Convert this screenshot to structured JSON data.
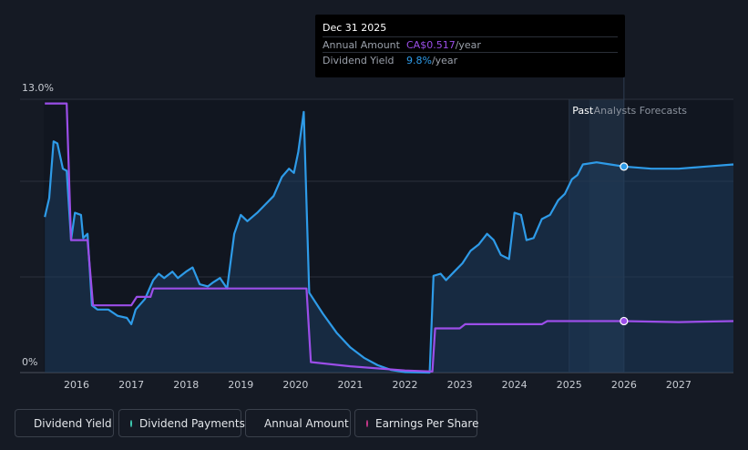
{
  "colors": {
    "background": "#151a24",
    "dividend_yield": "#2e9be8",
    "annual_amount": "#9b4ee8",
    "dividend_payments": "#3fcfb4",
    "earnings_per_share": "#c8388b"
  },
  "tooltip": {
    "date": "Dec 31 2025",
    "annual_amount_label": "Annual Amount",
    "annual_amount_value": "CA$0.517",
    "annual_amount_unit": "/year",
    "dividend_yield_label": "Dividend Yield",
    "dividend_yield_value": "9.8%",
    "dividend_yield_unit": "/year"
  },
  "legend": {
    "dividend_yield": "Dividend Yield",
    "dividend_payments": "Dividend Payments",
    "annual_amount": "Annual Amount",
    "earnings_per_share": "Earnings Per Share"
  },
  "chart_data": {
    "type": "line",
    "y_tick_labels": [
      "13.0%",
      "0%"
    ],
    "ylim": [
      0,
      13.0
    ],
    "x_tick_labels": [
      "2016",
      "2017",
      "2018",
      "2019",
      "2020",
      "2021",
      "2022",
      "2023",
      "2024",
      "2025",
      "2026",
      "2027"
    ],
    "xlim": [
      2015.4,
      2028.0
    ],
    "region_labels": {
      "past": "Past",
      "forecast": "Analysts Forecasts"
    },
    "past_boundary": 2025.0,
    "forecast_start": 2026.0,
    "grid": true,
    "series": [
      {
        "name": "Dividend Yield",
        "area": true,
        "points": [
          [
            2015.42,
            7.4
          ],
          [
            2015.5,
            8.3
          ],
          [
            2015.58,
            11.0
          ],
          [
            2015.65,
            10.9
          ],
          [
            2015.75,
            9.7
          ],
          [
            2015.82,
            9.6
          ],
          [
            2015.9,
            6.3
          ],
          [
            2015.97,
            7.6
          ],
          [
            2016.08,
            7.5
          ],
          [
            2016.12,
            6.4
          ],
          [
            2016.2,
            6.6
          ],
          [
            2016.28,
            3.2
          ],
          [
            2016.38,
            3.0
          ],
          [
            2016.58,
            3.0
          ],
          [
            2016.75,
            2.7
          ],
          [
            2016.92,
            2.6
          ],
          [
            2017.0,
            2.3
          ],
          [
            2017.08,
            3.0
          ],
          [
            2017.25,
            3.5
          ],
          [
            2017.4,
            4.4
          ],
          [
            2017.5,
            4.7
          ],
          [
            2017.6,
            4.5
          ],
          [
            2017.75,
            4.8
          ],
          [
            2017.85,
            4.5
          ],
          [
            2018.0,
            4.8
          ],
          [
            2018.12,
            5.0
          ],
          [
            2018.25,
            4.2
          ],
          [
            2018.4,
            4.1
          ],
          [
            2018.5,
            4.3
          ],
          [
            2018.62,
            4.5
          ],
          [
            2018.75,
            4.0
          ],
          [
            2018.88,
            6.6
          ],
          [
            2019.0,
            7.5
          ],
          [
            2019.12,
            7.2
          ],
          [
            2019.3,
            7.6
          ],
          [
            2019.45,
            8.0
          ],
          [
            2019.6,
            8.4
          ],
          [
            2019.75,
            9.3
          ],
          [
            2019.88,
            9.7
          ],
          [
            2019.97,
            9.5
          ],
          [
            2020.05,
            10.5
          ],
          [
            2020.15,
            12.4
          ],
          [
            2020.25,
            3.8
          ],
          [
            2020.5,
            2.8
          ],
          [
            2020.75,
            1.9
          ],
          [
            2021.0,
            1.2
          ],
          [
            2021.25,
            0.7
          ],
          [
            2021.5,
            0.35
          ],
          [
            2021.75,
            0.12
          ],
          [
            2022.0,
            0.02
          ],
          [
            2022.45,
            0.0
          ],
          [
            2022.52,
            4.6
          ],
          [
            2022.65,
            4.7
          ],
          [
            2022.75,
            4.4
          ],
          [
            2022.9,
            4.8
          ],
          [
            2023.05,
            5.2
          ],
          [
            2023.2,
            5.8
          ],
          [
            2023.35,
            6.1
          ],
          [
            2023.5,
            6.6
          ],
          [
            2023.62,
            6.3
          ],
          [
            2023.75,
            5.6
          ],
          [
            2023.9,
            5.4
          ],
          [
            2024.0,
            7.6
          ],
          [
            2024.12,
            7.5
          ],
          [
            2024.22,
            6.3
          ],
          [
            2024.35,
            6.4
          ],
          [
            2024.5,
            7.3
          ],
          [
            2024.65,
            7.5
          ],
          [
            2024.8,
            8.2
          ],
          [
            2024.92,
            8.5
          ],
          [
            2025.05,
            9.2
          ],
          [
            2025.15,
            9.4
          ],
          [
            2025.25,
            9.9
          ],
          [
            2025.5,
            10.0
          ],
          [
            2025.75,
            9.9
          ],
          [
            2026.0,
            9.8
          ],
          [
            2026.5,
            9.7
          ],
          [
            2027.0,
            9.7
          ],
          [
            2027.5,
            9.8
          ],
          [
            2028.0,
            9.9
          ]
        ]
      },
      {
        "name": "Annual Amount",
        "area": false,
        "points": [
          [
            2015.42,
            12.8
          ],
          [
            2015.82,
            12.8
          ],
          [
            2015.9,
            6.3
          ],
          [
            2016.2,
            6.3
          ],
          [
            2016.3,
            3.2
          ],
          [
            2017.0,
            3.2
          ],
          [
            2017.1,
            3.6
          ],
          [
            2017.35,
            3.6
          ],
          [
            2017.4,
            4.0
          ],
          [
            2020.2,
            4.0
          ],
          [
            2020.28,
            0.5
          ],
          [
            2021.0,
            0.3
          ],
          [
            2022.0,
            0.1
          ],
          [
            2022.5,
            0.05
          ],
          [
            2022.55,
            2.1
          ],
          [
            2023.0,
            2.1
          ],
          [
            2023.1,
            2.3
          ],
          [
            2024.5,
            2.3
          ],
          [
            2024.6,
            2.45
          ],
          [
            2026.0,
            2.45
          ],
          [
            2027.0,
            2.4
          ],
          [
            2028.0,
            2.45
          ]
        ]
      }
    ],
    "markers": [
      {
        "series": "Dividend Yield",
        "x": 2026.0,
        "y": 9.8
      },
      {
        "series": "Annual Amount",
        "x": 2026.0,
        "y": 2.45
      }
    ]
  }
}
